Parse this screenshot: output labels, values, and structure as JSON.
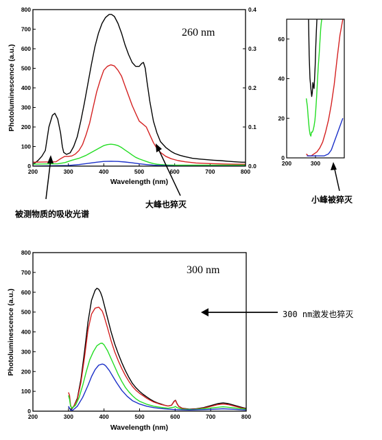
{
  "chart_data": [
    {
      "type": "line",
      "panel": "top",
      "annotation": "260 nm",
      "xlabel": "Wavelength (nm)",
      "ylabel": "Photoluminescence (a.u.)",
      "xlim": [
        200,
        800
      ],
      "ylim": [
        0,
        800
      ],
      "y2lim": [
        0,
        0.4
      ],
      "xticks": [
        "200",
        "300",
        "400",
        "500",
        "600",
        "700",
        "800"
      ],
      "yticks": [
        "0",
        "100",
        "200",
        "300",
        "400",
        "500",
        "600",
        "700",
        "800"
      ],
      "y2ticks": [
        "0.0",
        "0.1",
        "0.2",
        "0.3",
        "0.4"
      ],
      "series": [
        {
          "color": "#000000",
          "x": [
            200,
            205,
            215,
            225,
            235,
            240,
            245,
            255,
            262,
            270,
            278,
            283,
            287,
            295,
            305,
            315,
            325,
            335,
            345,
            355,
            365,
            375,
            385,
            395,
            405,
            415,
            422,
            430,
            440,
            450,
            460,
            470,
            480,
            490,
            500,
            507,
            512,
            517,
            522,
            530,
            540,
            550,
            560,
            575,
            590,
            600,
            615,
            630,
            650,
            670,
            690,
            710,
            730,
            750,
            770,
            790,
            800
          ],
          "y": [
            10,
            15,
            30,
            50,
            80,
            140,
            200,
            260,
            270,
            240,
            170,
            100,
            70,
            60,
            68,
            100,
            150,
            230,
            320,
            420,
            520,
            610,
            680,
            730,
            760,
            775,
            775,
            765,
            730,
            680,
            620,
            570,
            530,
            510,
            510,
            525,
            530,
            500,
            430,
            330,
            230,
            170,
            125,
            95,
            75,
            65,
            55,
            48,
            40,
            36,
            33,
            30,
            28,
            25,
            22,
            20,
            20
          ]
        },
        {
          "color": "#d42020",
          "x": [
            200,
            265,
            280,
            290,
            300,
            310,
            320,
            330,
            340,
            350,
            360,
            370,
            380,
            390,
            400,
            410,
            420,
            430,
            440,
            450,
            460,
            470,
            480,
            490,
            500,
            510,
            520,
            530,
            540,
            550,
            560,
            575,
            590,
            610,
            630,
            660,
            700,
            740,
            770,
            800
          ],
          "y": [
            20,
            22,
            40,
            50,
            50,
            52,
            62,
            80,
            110,
            160,
            220,
            300,
            380,
            440,
            490,
            510,
            518,
            512,
            490,
            460,
            410,
            360,
            310,
            270,
            230,
            215,
            200,
            160,
            120,
            90,
            70,
            50,
            38,
            28,
            22,
            16,
            13,
            11,
            10,
            10
          ]
        },
        {
          "color": "#22dd22",
          "x": [
            200,
            270,
            290,
            310,
            330,
            350,
            370,
            380,
            390,
            400,
            410,
            420,
            430,
            440,
            450,
            460,
            470,
            480,
            490,
            500,
            510,
            520,
            530,
            540,
            550,
            560,
            580,
            600,
            640,
            700,
            800
          ],
          "y": [
            10,
            12,
            18,
            30,
            40,
            55,
            75,
            85,
            95,
            105,
            110,
            112,
            110,
            105,
            95,
            82,
            70,
            57,
            45,
            37,
            30,
            24,
            18,
            13,
            10,
            8,
            6,
            5,
            5,
            5,
            5
          ]
        },
        {
          "color": "#1a2fc8",
          "x": [
            200,
            300,
            330,
            360,
            380,
            400,
            420,
            440,
            460,
            480,
            500,
            520,
            540,
            560,
            600,
            800
          ],
          "y": [
            0,
            3,
            8,
            15,
            20,
            24,
            25,
            24,
            21,
            17,
            12,
            8,
            5,
            3,
            1,
            0
          ]
        }
      ]
    },
    {
      "type": "line",
      "panel": "inset",
      "xlim": [
        200,
        400
      ],
      "ylim": [
        0,
        70
      ],
      "xticks": [
        "200",
        "300"
      ],
      "yticks": [
        "0",
        "20",
        "40",
        "60"
      ],
      "series": [
        {
          "color": "#000000",
          "x": [
            276,
            278,
            281,
            284,
            287,
            289,
            291,
            293,
            295,
            297,
            299,
            301,
            303,
            305
          ],
          "y": [
            70,
            52,
            40,
            35,
            31,
            33,
            38,
            36,
            35,
            40,
            47,
            56,
            64,
            70
          ]
        },
        {
          "color": "#22dd22",
          "x": [
            268,
            272,
            275,
            278,
            281,
            284,
            286,
            289,
            292,
            295,
            298,
            301,
            304,
            307,
            310,
            313,
            316,
            318,
            320,
            322
          ],
          "y": [
            30,
            26,
            20,
            15,
            12,
            11,
            13,
            13,
            14,
            16,
            19,
            24,
            31,
            39,
            47,
            53,
            60,
            65,
            68,
            70
          ]
        },
        {
          "color": "#d42020",
          "x": [
            268,
            275,
            285,
            295,
            305,
            315,
            325,
            335,
            345,
            355,
            365,
            375,
            385,
            395
          ],
          "y": [
            2,
            1,
            1,
            2,
            3,
            5,
            8,
            13,
            19,
            27,
            37,
            50,
            62,
            70
          ]
        },
        {
          "color": "#1a2fc8",
          "x": [
            270,
            285,
            300,
            315,
            330,
            345,
            355,
            365,
            375,
            385,
            395
          ],
          "y": [
            1,
            1,
            1,
            1,
            1,
            2,
            4,
            8,
            12,
            16,
            20
          ]
        }
      ]
    },
    {
      "type": "line",
      "panel": "bottom",
      "annotation": "300 nm",
      "xlabel": "Wavelength (nm)",
      "ylabel": "Photoluminescence (a.u.)",
      "xlim": [
        200,
        800
      ],
      "ylim": [
        0,
        800
      ],
      "xticks": [
        "200",
        "300",
        "400",
        "500",
        "600",
        "700",
        "800"
      ],
      "yticks": [
        "0",
        "100",
        "200",
        "300",
        "400",
        "500",
        "600",
        "700",
        "800"
      ],
      "series": [
        {
          "color": "#000000",
          "x": [
            300,
            303,
            306,
            309,
            315,
            325,
            335,
            345,
            355,
            365,
            375,
            380,
            385,
            390,
            395,
            400,
            410,
            420,
            430,
            440,
            450,
            460,
            470,
            480,
            490,
            500,
            510,
            520,
            530,
            540,
            550,
            560,
            570,
            580,
            590,
            597,
            601,
            605,
            610,
            620,
            640,
            660,
            680,
            700,
            720,
            735,
            750,
            770,
            790,
            800
          ],
          "y": [
            20,
            15,
            10,
            10,
            25,
            65,
            160,
            300,
            450,
            560,
            610,
            620,
            615,
            600,
            575,
            540,
            470,
            400,
            340,
            290,
            245,
            205,
            170,
            140,
            118,
            100,
            85,
            72,
            60,
            50,
            42,
            36,
            30,
            26,
            30,
            50,
            55,
            40,
            25,
            15,
            10,
            12,
            18,
            28,
            38,
            42,
            38,
            28,
            18,
            14
          ]
        },
        {
          "color": "#d42020",
          "x": [
            300,
            303,
            306,
            309,
            315,
            325,
            335,
            345,
            355,
            365,
            375,
            385,
            395,
            400,
            410,
            420,
            430,
            440,
            450,
            460,
            470,
            480,
            490,
            500,
            510,
            520,
            530,
            540,
            550,
            560,
            570,
            580,
            590,
            597,
            601,
            605,
            610,
            620,
            640,
            660,
            680,
            700,
            720,
            735,
            750,
            770,
            790,
            800
          ],
          "y": [
            95,
            80,
            30,
            15,
            25,
            60,
            145,
            270,
            410,
            490,
            520,
            525,
            505,
            480,
            420,
            355,
            300,
            255,
            215,
            180,
            150,
            125,
            105,
            90,
            78,
            65,
            55,
            46,
            40,
            34,
            30,
            26,
            30,
            48,
            54,
            38,
            24,
            14,
            9,
            11,
            16,
            24,
            33,
            36,
            33,
            24,
            15,
            12
          ]
        },
        {
          "color": "#22dd22",
          "x": [
            300,
            303,
            306,
            310,
            320,
            330,
            340,
            350,
            360,
            370,
            380,
            390,
            395,
            400,
            410,
            420,
            430,
            440,
            450,
            460,
            470,
            480,
            490,
            500,
            520,
            540,
            560,
            580,
            597,
            601,
            605,
            620,
            650,
            700,
            735,
            770,
            800
          ],
          "y": [
            80,
            60,
            25,
            15,
            30,
            70,
            130,
            200,
            260,
            300,
            330,
            342,
            343,
            335,
            305,
            265,
            225,
            185,
            150,
            120,
            97,
            78,
            62,
            50,
            35,
            25,
            19,
            15,
            20,
            24,
            18,
            10,
            8,
            16,
            22,
            16,
            10
          ]
        },
        {
          "color": "#1a2fc8",
          "x": [
            300,
            303,
            306,
            312,
            325,
            340,
            355,
            365,
            375,
            385,
            395,
            400,
            405,
            415,
            425,
            435,
            450,
            465,
            480,
            500,
            520,
            540,
            560,
            580,
            600,
            640,
            700,
            735,
            770,
            800
          ],
          "y": [
            25,
            15,
            5,
            5,
            25,
            70,
            130,
            175,
            210,
            232,
            238,
            235,
            228,
            205,
            175,
            145,
            105,
            75,
            53,
            36,
            25,
            18,
            13,
            10,
            8,
            6,
            9,
            12,
            9,
            6
          ]
        }
      ]
    }
  ],
  "annotations": {
    "top_left": "被测物质的吸收光谱",
    "top_mid": "大峰也猝灭",
    "inset": "小峰被猝灭",
    "bottom": "300 nm激发也猝灭"
  }
}
